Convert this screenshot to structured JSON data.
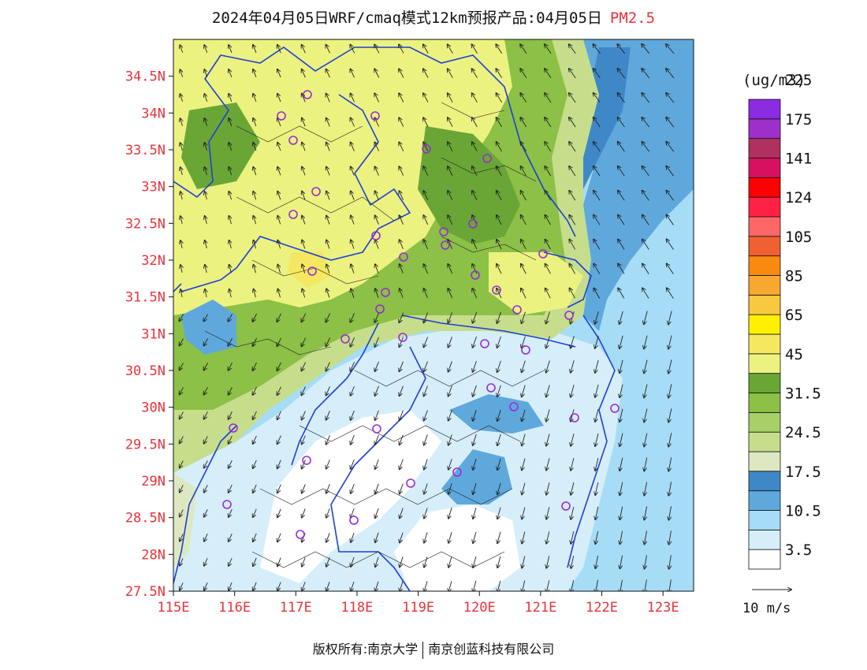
{
  "title": {
    "main": "2024年04月05日WRF/cmaq模式12km预报产品:04月05日",
    "variable": "PM2.5"
  },
  "map": {
    "lat_labels": [
      "34.5N",
      "34N",
      "33.5N",
      "33N",
      "32.5N",
      "32N",
      "31.5N",
      "31N",
      "30.5N",
      "30N",
      "29.5N",
      "29N",
      "28.5N",
      "28N",
      "27.5N"
    ],
    "lon_labels": [
      "115E",
      "116E",
      "117E",
      "118E",
      "119E",
      "120E",
      "121E",
      "122E",
      "123E"
    ],
    "lat_range": [
      27.5,
      35.0
    ],
    "lon_range": [
      115.0,
      123.5
    ],
    "colors": {
      "boundary": "#1f3fd6",
      "tick": "#e8333a",
      "station": "#9a2bd6"
    }
  },
  "colorbar": {
    "unit": "(ug/m3)",
    "colors": [
      "#ffffff",
      "#d6eefa",
      "#a6dcf6",
      "#5fa8dc",
      "#3f88c8",
      "#dde8c0",
      "#c6de8c",
      "#a8d068",
      "#8cc046",
      "#6aa636",
      "#ecf280",
      "#f4e860",
      "#fff000",
      "#f8c840",
      "#f8a830",
      "#f88a10",
      "#f06030",
      "#ff6666",
      "#ff2244",
      "#ff0000",
      "#d81060",
      "#b03060",
      "#9c30c8",
      "#8b2be2"
    ],
    "labels": [
      "3.5",
      "10.5",
      "17.5",
      "24.5",
      "31.5",
      "45",
      "65",
      "85",
      "105",
      "124",
      "141",
      "175",
      "225"
    ]
  },
  "wind_reference": {
    "label": "10 m/s"
  },
  "footer": {
    "left": "版权所有:南京大学",
    "right": "南京创蓝科技有限公司"
  }
}
